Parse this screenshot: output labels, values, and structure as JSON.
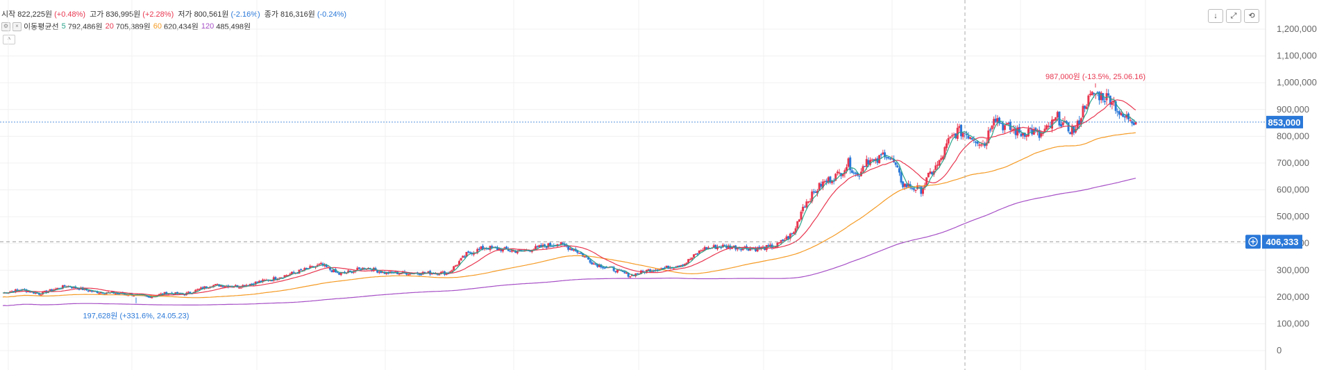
{
  "legend": {
    "open_label": "시작",
    "open_value": "822,225원",
    "open_change": "(+0.48%)",
    "high_label": "고가",
    "high_value": "836,995원",
    "high_change": "(+2.28%)",
    "low_label": "저가",
    "low_value": "800,561원",
    "low_change": "(-2.16%)",
    "close_label": "종가",
    "close_value": "816,316원",
    "close_change": "(-0.24%)"
  },
  "moving_average": {
    "title": "이동평균선",
    "items": [
      {
        "period": "5",
        "value": "792,486원",
        "color": "#2ba38a"
      },
      {
        "period": "20",
        "value": "705,389원",
        "color": "#e8364f"
      },
      {
        "period": "60",
        "value": "620,434원",
        "color": "#f59a23"
      },
      {
        "period": "120",
        "value": "485,498원",
        "color": "#a64fc6"
      }
    ]
  },
  "controls": {
    "collapse_glyph": "^",
    "settings_glyph": "⚙",
    "remove_glyph": "×",
    "download_glyph": "↓",
    "expand_glyph": "⤢",
    "reset_glyph": "⟲"
  },
  "chart_data": {
    "type": "candlestick",
    "title": "",
    "xlabel": "",
    "ylabel": "",
    "ylim": [
      0,
      1280000
    ],
    "y_ticks": [
      "1,200,000",
      "1,100,000",
      "1,000,000",
      "900,000",
      "800,000",
      "700,000",
      "600,000",
      "500,000",
      "400,000",
      "300,000",
      "200,000",
      "100,000",
      "0"
    ],
    "y_tick_values": [
      1200000,
      1100000,
      1000000,
      900000,
      800000,
      700000,
      600000,
      500000,
      400000,
      300000,
      200000,
      100000,
      0
    ],
    "current_price_label": "853,000",
    "current_price": 853000,
    "crosshair_price_label": "406,333",
    "crosshair_price": 406333,
    "high_annotation": "987,000원 (-13.5%, 25.06.16)",
    "high_value": 987000,
    "low_annotation": "197,628원 (+331.6%, 24.05.23)",
    "low_value": 197628,
    "grid": true,
    "colors": {
      "up": "#e8364f",
      "down": "#2a78d8",
      "ma5": "#2ba38a",
      "ma20": "#e8364f",
      "ma60": "#f59a23",
      "ma120": "#a64fc6",
      "current_price_bg": "#2a78d8",
      "crosshair_bg": "#2a78d8"
    },
    "close_anchors": [
      [
        0,
        215000
      ],
      [
        10,
        228000
      ],
      [
        20,
        212000
      ],
      [
        35,
        242000
      ],
      [
        50,
        220000
      ],
      [
        70,
        210000
      ],
      [
        80,
        200000
      ],
      [
        90,
        215000
      ],
      [
        100,
        210000
      ],
      [
        115,
        245000
      ],
      [
        130,
        240000
      ],
      [
        150,
        270000
      ],
      [
        175,
        320000
      ],
      [
        185,
        285000
      ],
      [
        200,
        310000
      ],
      [
        210,
        290000
      ],
      [
        230,
        290000
      ],
      [
        245,
        290000
      ],
      [
        255,
        360000
      ],
      [
        265,
        385000
      ],
      [
        285,
        370000
      ],
      [
        295,
        385000
      ],
      [
        305,
        400000
      ],
      [
        315,
        375000
      ],
      [
        325,
        325000
      ],
      [
        335,
        305000
      ],
      [
        345,
        280000
      ],
      [
        355,
        300000
      ],
      [
        365,
        310000
      ],
      [
        375,
        325000
      ],
      [
        385,
        380000
      ],
      [
        395,
        390000
      ],
      [
        405,
        385000
      ],
      [
        415,
        380000
      ],
      [
        425,
        390000
      ],
      [
        435,
        440000
      ],
      [
        440,
        540000
      ],
      [
        450,
        620000
      ],
      [
        460,
        660000
      ],
      [
        465,
        700000
      ],
      [
        470,
        650000
      ],
      [
        475,
        715000
      ],
      [
        480,
        700000
      ],
      [
        485,
        740000
      ],
      [
        490,
        700000
      ],
      [
        495,
        620000
      ],
      [
        500,
        610000
      ],
      [
        505,
        600000
      ],
      [
        510,
        660000
      ],
      [
        515,
        700000
      ],
      [
        520,
        780000
      ],
      [
        525,
        820000
      ],
      [
        530,
        810000
      ],
      [
        535,
        790000
      ],
      [
        540,
        770000
      ],
      [
        545,
        880000
      ],
      [
        550,
        840000
      ],
      [
        555,
        825000
      ],
      [
        560,
        810000
      ],
      [
        565,
        825000
      ],
      [
        570,
        800000
      ],
      [
        575,
        830000
      ],
      [
        580,
        870000
      ],
      [
        585,
        830000
      ],
      [
        590,
        820000
      ],
      [
        595,
        920000
      ],
      [
        600,
        960000
      ],
      [
        605,
        950000
      ],
      [
        610,
        940000
      ],
      [
        615,
        870000
      ],
      [
        620,
        870000
      ],
      [
        623,
        853000
      ]
    ]
  }
}
